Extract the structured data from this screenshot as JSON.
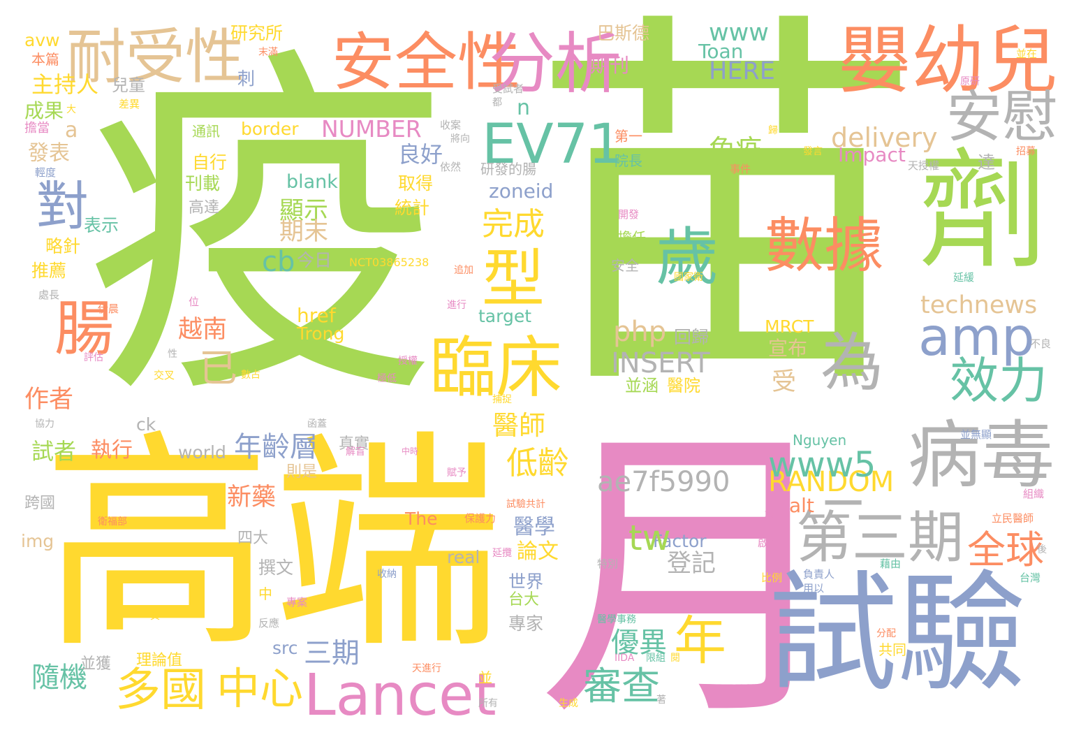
{
  "colors": {
    "green": "#a6d854",
    "yellow": "#ffd92f",
    "pink": "#e78ac3",
    "blue": "#8da0cb",
    "orange": "#fc8d62",
    "teal": "#66c2a5",
    "gray": "#b3b3b3",
    "tan": "#e5c494"
  },
  "words": [
    "疫",
    "苗",
    "高端",
    "月",
    "試驗",
    "劑",
    "嬰幼兒",
    "安全性",
    "分析",
    "耐受性",
    "EV71",
    "安慰",
    "數據",
    "歲",
    "型",
    "臨床",
    "病毒",
    "amp",
    "為",
    "效力",
    "第三期",
    "全球",
    "Lancet",
    "年",
    "多國",
    "中心",
    "審查",
    "腸",
    "對",
    "已",
    "www",
    "HERE",
    "Toan",
    "NUMBER",
    "delivery",
    "Impact",
    "zoneid",
    "blank",
    "免疫",
    "良好",
    "完成",
    "cb",
    "technews",
    "php",
    "INSERT",
    "ae7f5990",
    "RANDOM",
    "www5",
    "年齡層",
    "越南",
    "主持人",
    "成果",
    "發表",
    "作者",
    "試者",
    "執行",
    "新藥",
    "隨機",
    "三期",
    "低齡",
    "醫師",
    "優異",
    "MRCT",
    "Trong",
    "href",
    "target",
    "NCT03865238",
    "Nguyen",
    "Factor",
    "world",
    "The",
    "alt",
    "img",
    "src",
    "ck",
    "border",
    "期刊",
    "巴斯德",
    "研究所",
    "兒童",
    "顯示",
    "期末",
    "今日",
    "回歸",
    "宣布",
    "並涵",
    "醫院",
    "受",
    "登記",
    "醫學",
    "論文",
    "世界",
    "台大",
    "專家",
    "理論值",
    "並獲",
    "撰文",
    "四大",
    "跨國",
    "real",
    "tw",
    "刊載",
    "高達",
    "表示",
    "推薦",
    "自行",
    "取得",
    "統計",
    "通訊",
    "研發的腸",
    "院長",
    "第一",
    "達",
    "共同",
    "台灣",
    "分配",
    "比例",
    "負責人",
    "用以",
    "特別",
    "真實",
    "則是",
    "中",
    "專案",
    "反應",
    "並",
    "所有",
    "生成",
    "天進行",
    "著",
    "開發",
    "擔任",
    "安全",
    "並在",
    "後",
    "不良",
    "立民醫師",
    "組織",
    "啟動",
    "戴",
    "衛福部",
    "試驗共計",
    "保護力",
    "賦予",
    "中時",
    "解盲",
    "延攬",
    "協力",
    "交叉",
    "評估",
    "性",
    "位",
    "伊晨",
    "處長",
    "略針",
    "輕度",
    "擔當",
    "大",
    "差異",
    "收案",
    "將向",
    "依然",
    "事件",
    "天授權",
    "嬰兒",
    "發言",
    "招募",
    "並無顯",
    "國家衛",
    "授權",
    "極低",
    "數占",
    "追加",
    "進行",
    "醫學事務",
    "IIDA",
    "限組",
    "閱",
    "藉由",
    "延緩",
    "收納",
    "黃",
    "刺",
    "本篇",
    "avw",
    "末滿",
    "n",
    "a",
    "受試者",
    "都",
    "函蓋",
    "原研",
    "歸",
    "捕捉",
    "一"
  ]
}
